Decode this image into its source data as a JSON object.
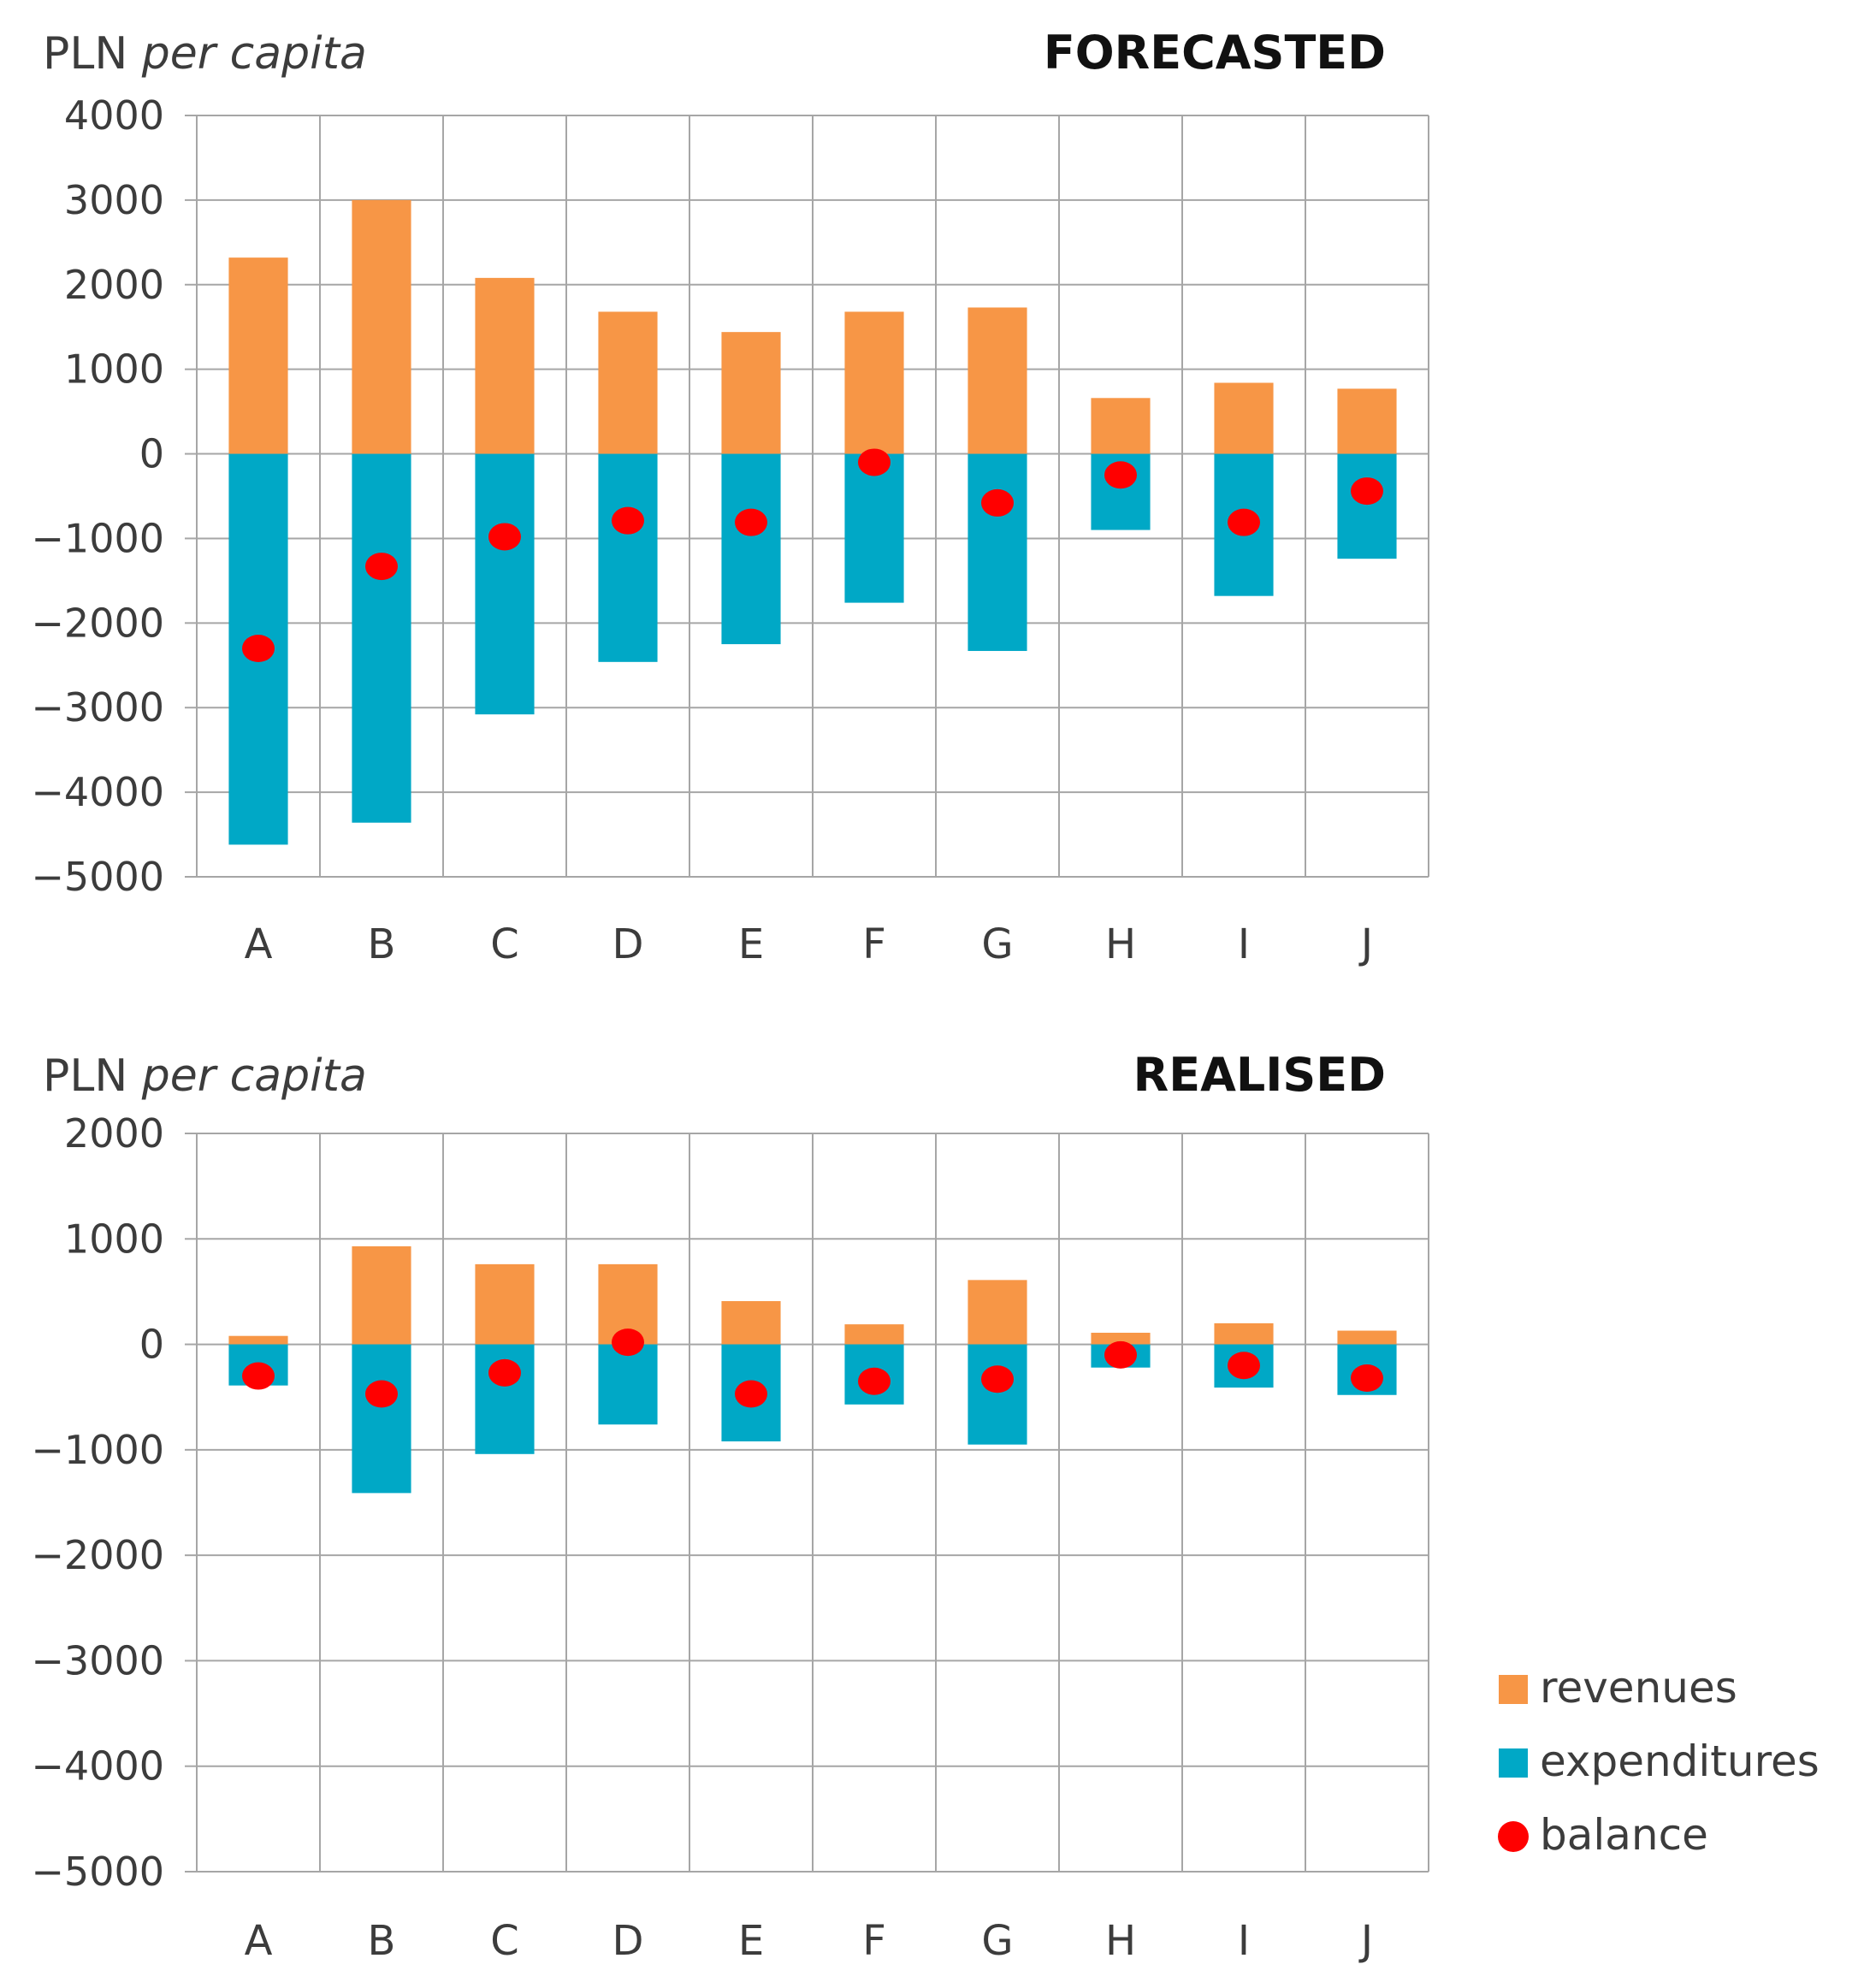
{
  "chart_data": [
    {
      "type": "bar",
      "title": "FORECASTED",
      "ylabel": "PLN per capita",
      "ylabel_parts": {
        "main": "PLN",
        "italic": "per capita"
      },
      "xlabel": "",
      "categories": [
        "A",
        "B",
        "C",
        "D",
        "E",
        "F",
        "G",
        "H",
        "I",
        "J"
      ],
      "ylim": [
        -5000,
        4000
      ],
      "yticks": [
        4000,
        3000,
        2000,
        1000,
        0,
        -1000,
        -2000,
        -3000,
        -4000,
        -5000
      ],
      "ytick_labels": [
        "4000",
        "3000",
        "2000",
        "1000",
        "0",
        "−1000",
        "−2000",
        "−3000",
        "−4000",
        "−5000"
      ],
      "grid": true,
      "series": [
        {
          "name": "revenues",
          "type": "bar",
          "color": "#f79646",
          "values": [
            2320,
            3000,
            2080,
            1680,
            1440,
            1680,
            1730,
            660,
            840,
            770
          ]
        },
        {
          "name": "expenditures",
          "type": "bar",
          "color": "#00a8c6",
          "values": [
            -4620,
            -4360,
            -3080,
            -2460,
            -2250,
            -1760,
            -2330,
            -900,
            -1680,
            -1240
          ]
        },
        {
          "name": "balance",
          "type": "scatter",
          "color": "#ff0000",
          "values": [
            -2300,
            -1330,
            -980,
            -790,
            -810,
            -100,
            -580,
            -250,
            -810,
            -440
          ]
        }
      ]
    },
    {
      "type": "bar",
      "title": "REALISED",
      "ylabel": "PLN per capita",
      "ylabel_parts": {
        "main": "PLN",
        "italic": "per capita"
      },
      "xlabel": "",
      "categories": [
        "A",
        "B",
        "C",
        "D",
        "E",
        "F",
        "G",
        "H",
        "I",
        "J"
      ],
      "ylim": [
        -5000,
        2000
      ],
      "yticks": [
        2000,
        1000,
        0,
        -1000,
        -2000,
        -3000,
        -4000,
        -5000
      ],
      "ytick_labels": [
        "2000",
        "1000",
        "0",
        "−1000",
        "−2000",
        "−3000",
        "−4000",
        "−5000"
      ],
      "grid": true,
      "series": [
        {
          "name": "revenues",
          "type": "bar",
          "color": "#f79646",
          "values": [
            80,
            930,
            760,
            760,
            410,
            190,
            610,
            110,
            200,
            130
          ]
        },
        {
          "name": "expenditures",
          "type": "bar",
          "color": "#00a8c6",
          "values": [
            -390,
            -1410,
            -1040,
            -760,
            -920,
            -570,
            -950,
            -220,
            -410,
            -480
          ]
        },
        {
          "name": "balance",
          "type": "scatter",
          "color": "#ff0000",
          "values": [
            -300,
            -470,
            -270,
            20,
            -470,
            -350,
            -330,
            -100,
            -200,
            -320
          ]
        }
      ]
    }
  ],
  "legend": {
    "placement": "bottom-right",
    "items": [
      {
        "label": "revenues",
        "marker": "square",
        "color": "#f79646"
      },
      {
        "label": "expenditures",
        "marker": "square",
        "color": "#00a8c6"
      },
      {
        "label": "balance",
        "marker": "circle",
        "color": "#ff0000"
      }
    ]
  }
}
